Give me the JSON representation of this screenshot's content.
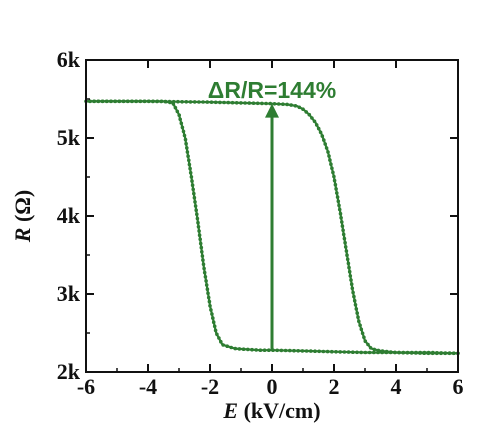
{
  "chart_data": {
    "type": "line",
    "title": "",
    "xlabel": {
      "symbol": "E",
      "unit": " (kV/cm)"
    },
    "ylabel": {
      "symbol": "R",
      "unit": " (Ω)"
    },
    "xlim": [
      -6,
      6
    ],
    "ylim": [
      2000,
      6000
    ],
    "x_ticks": [
      {
        "value": -6,
        "label": "-6"
      },
      {
        "value": -4,
        "label": "-4"
      },
      {
        "value": -2,
        "label": "-2"
      },
      {
        "value": 0,
        "label": "0"
      },
      {
        "value": 2,
        "label": "2"
      },
      {
        "value": 4,
        "label": "4"
      },
      {
        "value": 6,
        "label": "6"
      }
    ],
    "y_ticks": [
      {
        "value": 2000,
        "label": "2k"
      },
      {
        "value": 3000,
        "label": "3k"
      },
      {
        "value": 4000,
        "label": "4k"
      },
      {
        "value": 5000,
        "label": "5k"
      },
      {
        "value": 6000,
        "label": "6k"
      }
    ],
    "grid": false,
    "legend": "none",
    "color": "#2e7d32",
    "series": [
      {
        "x": [
          -6,
          -5,
          -4,
          -3.5,
          -3.2,
          -3.0,
          -2.8,
          -2.6,
          -2.4,
          -2.2,
          -2.0,
          -1.8,
          -1.6,
          -1.2,
          -0.8,
          -0.4,
          0,
          1,
          2,
          3,
          4,
          5,
          6
        ],
        "y": [
          5470,
          5470,
          5470,
          5470,
          5450,
          5300,
          5000,
          4500,
          3950,
          3350,
          2850,
          2500,
          2350,
          2300,
          2290,
          2280,
          2280,
          2270,
          2260,
          2250,
          2250,
          2240,
          2240
        ]
      },
      {
        "x": [
          6,
          5,
          4,
          3.5,
          3.2,
          3.0,
          2.8,
          2.6,
          2.4,
          2.2,
          2.0,
          1.8,
          1.6,
          1.4,
          1.2,
          1.0,
          0.8,
          0.5,
          0,
          -1,
          -2,
          -3,
          -4,
          -5,
          -6
        ],
        "y": [
          2240,
          2250,
          2250,
          2270,
          2300,
          2400,
          2650,
          3050,
          3550,
          4050,
          4500,
          4830,
          5050,
          5200,
          5300,
          5370,
          5410,
          5430,
          5440,
          5450,
          5460,
          5465,
          5470,
          5470,
          5470
        ]
      }
    ],
    "annotations": [
      {
        "text": "ΔR/R=144%",
        "arrow": {
          "x": 0,
          "y_from": 2280,
          "y_to": 5440
        }
      }
    ]
  }
}
